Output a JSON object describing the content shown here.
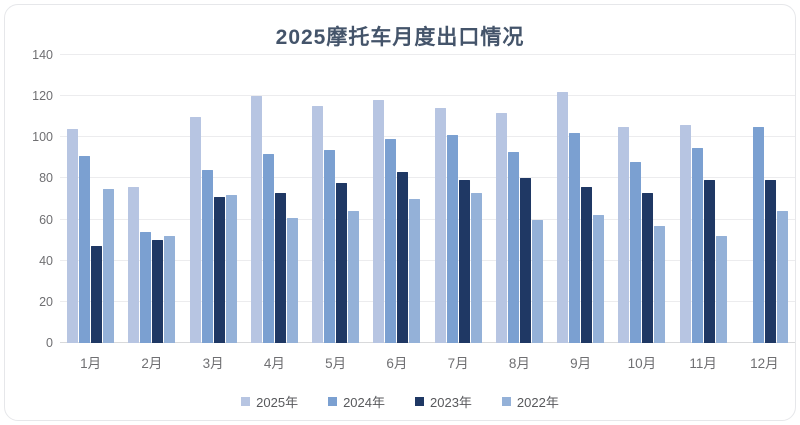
{
  "chart_data": {
    "type": "bar",
    "title": "2025摩托车月度出口情况",
    "categories": [
      "1月",
      "2月",
      "3月",
      "4月",
      "5月",
      "6月",
      "7月",
      "8月",
      "9月",
      "10月",
      "11月",
      "12月"
    ],
    "series": [
      {
        "name": "2025年",
        "color": "#b7c5e2",
        "values": [
          104,
          76,
          110,
          120,
          115,
          118,
          114,
          112,
          122,
          105,
          106,
          null
        ]
      },
      {
        "name": "2024年",
        "color": "#7ba0d1",
        "values": [
          91,
          54,
          84,
          92,
          94,
          99,
          101,
          93,
          102,
          88,
          95,
          105
        ]
      },
      {
        "name": "2023年",
        "color": "#1f3864",
        "values": [
          47,
          50,
          71,
          73,
          78,
          83,
          79,
          80,
          76,
          73,
          79,
          79
        ]
      },
      {
        "name": "2022年",
        "color": "#94b1d8",
        "values": [
          75,
          52,
          72,
          61,
          64,
          70,
          73,
          60,
          62,
          57,
          52,
          64
        ]
      }
    ],
    "ylim": [
      0,
      140
    ],
    "ytick_step": 20,
    "yticks": [
      0,
      20,
      40,
      60,
      80,
      100,
      120,
      140
    ],
    "grid": true,
    "legend_position": "bottom"
  }
}
